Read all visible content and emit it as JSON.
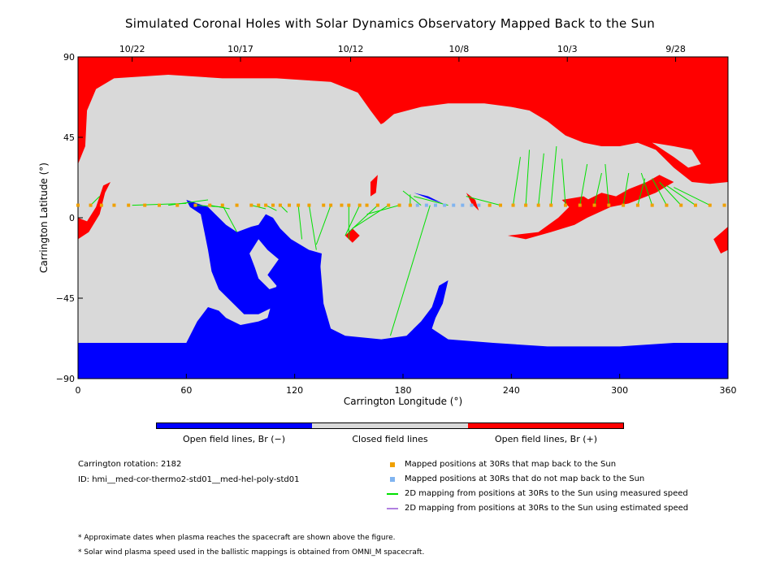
{
  "title": "Simulated Coronal Holes with Solar Dynamics Observatory Mapped Back to the Sun",
  "chart_data": {
    "type": "heatmap",
    "xlabel": "Carrington Longitude (°)",
    "ylabel": "Carrington Latitude (°)",
    "xlim": [
      0,
      360
    ],
    "ylim": [
      -90,
      90
    ],
    "xticks": [
      "0",
      "60",
      "120",
      "180",
      "240",
      "300",
      "360"
    ],
    "yticks": [
      "90",
      "45",
      "0",
      "−45",
      "−90"
    ],
    "top_axis_dates": [
      {
        "label": "10/22",
        "lon": 30
      },
      {
        "label": "10/17",
        "lon": 90
      },
      {
        "label": "10/12",
        "lon": 151
      },
      {
        "label": "10/8",
        "lon": 211
      },
      {
        "label": "10/3",
        "lon": 271
      },
      {
        "label": "9/28",
        "lon": 331
      }
    ],
    "colors": {
      "open_negative": "#0000ff",
      "closed": "#d9d9d9",
      "open_positive": "#ff0000",
      "mapped_back": "#f0a000",
      "not_mapped": "#80b4f0",
      "measured_speed": "#00e000",
      "estimated_speed": "#b080e0"
    },
    "spacecraft_latitude": 7,
    "mapped_points_lon": [
      0,
      7,
      13,
      20,
      28,
      37,
      45,
      55,
      65,
      73,
      80,
      88,
      96,
      100,
      104,
      108,
      112,
      117,
      122,
      128,
      136,
      140,
      146,
      150,
      156,
      160,
      166,
      172,
      178,
      184,
      228,
      234,
      241,
      248,
      255,
      262,
      270,
      278,
      286,
      294,
      302,
      310,
      318,
      326,
      334,
      342,
      350,
      358
    ],
    "unmapped_points_lon": [
      188,
      193,
      198,
      203,
      208,
      213,
      218,
      222
    ],
    "measured_mappings": [
      [
        7,
        7,
        12,
        12
      ],
      [
        30,
        7,
        60,
        8
      ],
      [
        50,
        7,
        72,
        10
      ],
      [
        65,
        7,
        80,
        6
      ],
      [
        73,
        7,
        84,
        5
      ],
      [
        80,
        7,
        88,
        -8
      ],
      [
        96,
        7,
        104,
        5
      ],
      [
        104,
        7,
        110,
        4
      ],
      [
        112,
        7,
        116,
        3
      ],
      [
        122,
        7,
        124,
        -12
      ],
      [
        128,
        7,
        132,
        -18
      ],
      [
        140,
        7,
        132,
        -15
      ],
      [
        150,
        7,
        150,
        -12
      ],
      [
        156,
        7,
        148,
        -10
      ],
      [
        166,
        7,
        150,
        -8
      ],
      [
        172,
        7,
        152,
        -6
      ],
      [
        178,
        7,
        160,
        2
      ],
      [
        184,
        7,
        184,
        13
      ],
      [
        190,
        7,
        180,
        15
      ],
      [
        195,
        7,
        173,
        -66
      ],
      [
        205,
        7,
        186,
        12
      ],
      [
        234,
        7,
        215,
        12
      ],
      [
        241,
        7,
        245,
        34
      ],
      [
        248,
        7,
        250,
        38
      ],
      [
        255,
        7,
        258,
        36
      ],
      [
        262,
        7,
        265,
        40
      ],
      [
        270,
        7,
        268,
        33
      ],
      [
        278,
        7,
        282,
        30
      ],
      [
        286,
        7,
        290,
        25
      ],
      [
        294,
        7,
        292,
        30
      ],
      [
        302,
        7,
        305,
        25
      ],
      [
        310,
        7,
        314,
        22
      ],
      [
        318,
        7,
        312,
        25
      ],
      [
        326,
        7,
        318,
        22
      ],
      [
        334,
        7,
        322,
        20
      ],
      [
        342,
        7,
        326,
        18
      ],
      [
        350,
        7,
        330,
        17
      ]
    ],
    "estimated_mappings": []
  },
  "colorbar": {
    "labels": [
      "Open field lines, Br (−)",
      "Closed field lines",
      "Open field lines, Br (+)"
    ],
    "colors": [
      "#0000ff",
      "#d9d9d9",
      "#ff0000"
    ]
  },
  "info": {
    "rotation": "Carrington rotation: 2182",
    "id": "ID: hmi__med-cor-thermo2-std01__med-hel-poly-std01"
  },
  "legend": {
    "mapped": "Mapped positions at 30Rs that map back to the Sun",
    "unmapped": "Mapped positions at 30Rs that do not map back to the Sun",
    "measured": "2D mapping from positions at 30Rs to the Sun using measured speed",
    "estimated": "2D mapping from positions at 30Rs to the Sun using estimated speed"
  },
  "notes": [
    "* Approximate dates when plasma reaches the spacecraft are shown above the figure.",
    "* Solar wind plasma speed used in the ballistic mappings is obtained from OMNI_M spacecraft."
  ]
}
